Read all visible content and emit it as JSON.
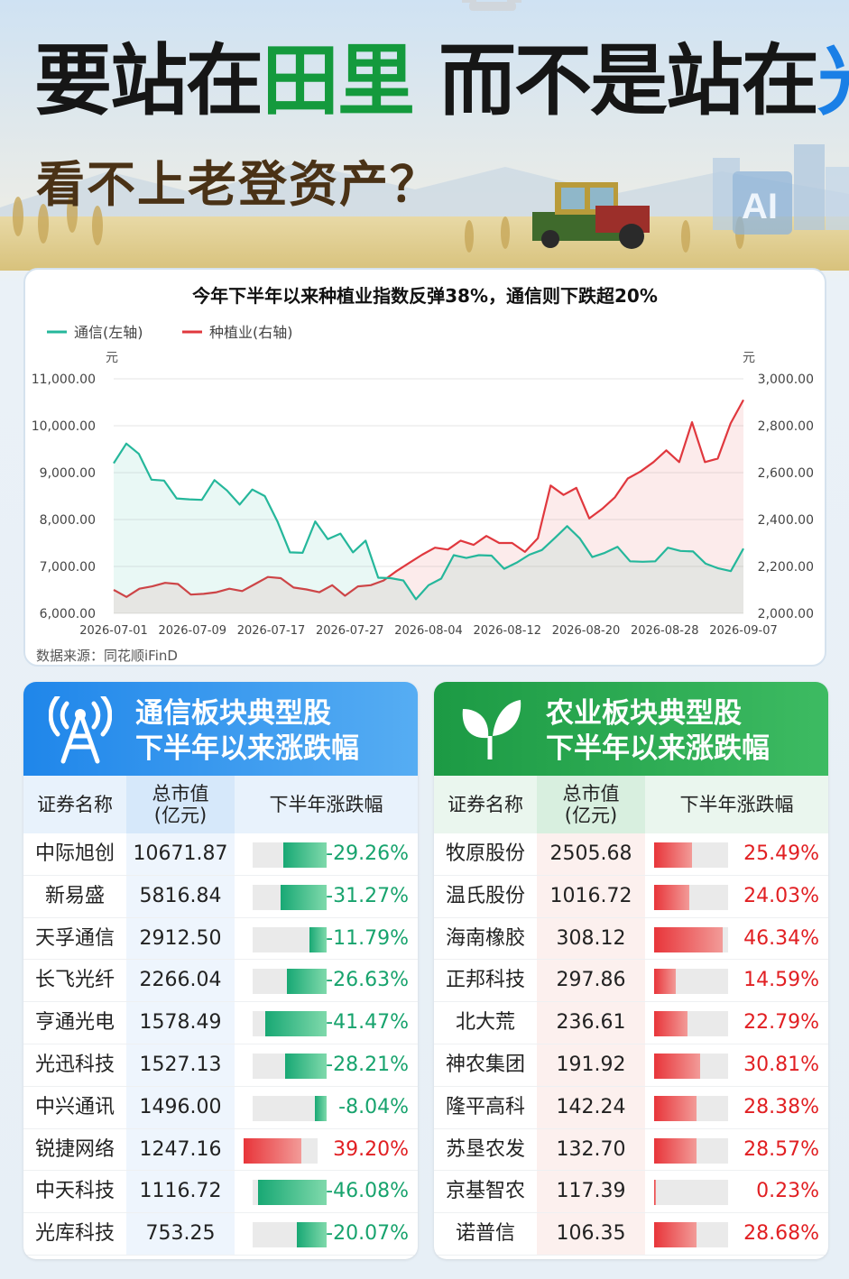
{
  "header": {
    "line1_a": "要站在",
    "line1_b": "田里",
    "line1_c": " 而不是站在",
    "line1_d": "光里",
    "line2": "看不上老登资产？",
    "ai_label": "AI"
  },
  "chart_data": {
    "type": "line",
    "title": "今年下半年以来种植业指数反弹38%，通信则下跌超20%",
    "source": "数据来源：同花顺iFinD",
    "left_unit": "元",
    "right_unit": "元",
    "left_axis": {
      "ticks": [
        "6,000.00",
        "7,000.00",
        "8,000.00",
        "9,000.00",
        "10,000.00",
        "11,000.00"
      ],
      "range": [
        6000,
        11000
      ]
    },
    "right_axis": {
      "ticks": [
        "2,000.00",
        "2,200.00",
        "2,400.00",
        "2,600.00",
        "2,800.00",
        "3,000.00"
      ],
      "range": [
        2000,
        3000
      ]
    },
    "x_ticks": [
      "2026-07-01",
      "2026-07-09",
      "2026-07-17",
      "2026-07-27",
      "2026-08-04",
      "2026-08-12",
      "2026-08-20",
      "2026-08-28",
      "2026-09-07"
    ],
    "series": [
      {
        "name": "种植业(右轴)",
        "axis": "right",
        "color": "#e0383e",
        "values": [
          2100,
          2070,
          2105,
          2115,
          2130,
          2125,
          2080,
          2083,
          2090,
          2105,
          2095,
          2125,
          2155,
          2150,
          2110,
          2102,
          2090,
          2120,
          2075,
          2115,
          2120,
          2140,
          2180,
          2215,
          2250,
          2280,
          2272,
          2310,
          2292,
          2330,
          2300,
          2300,
          2262,
          2320,
          2545,
          2505,
          2535,
          2405,
          2445,
          2495,
          2575,
          2605,
          2645,
          2695,
          2645,
          2815,
          2645,
          2660,
          2810
        ],
        "end_value": 2910
      },
      {
        "name": "通信(左轴)",
        "axis": "left",
        "color": "#25b79b",
        "values": [
          9200,
          9620,
          9400,
          8850,
          8830,
          8450,
          8430,
          8420,
          8840,
          8620,
          8320,
          8640,
          8500,
          7960,
          7300,
          7290,
          7960,
          7580,
          7700,
          7300,
          7550,
          6760,
          6750,
          6700,
          6300,
          6600,
          6740,
          7240,
          7180,
          7240,
          7230,
          6950,
          7080,
          7250,
          7350,
          7600,
          7860,
          7600,
          7200,
          7290,
          7420,
          7110,
          7100,
          7110,
          7400,
          7330,
          7320,
          7060,
          6960,
          6900,
          7380
        ]
      }
    ]
  },
  "telecom_table": {
    "title1": "通信板块典型股",
    "title2": "下半年以来涨跌幅",
    "col_name": "证券名称",
    "col_cap1": "总市值",
    "col_cap2": "(亿元)",
    "col_change": "下半年涨跌幅",
    "rows": [
      {
        "name": "中际旭创",
        "cap": "10671.87",
        "change": "-29.26%",
        "value": -29.26
      },
      {
        "name": "新易盛",
        "cap": "5816.84",
        "change": "-31.27%",
        "value": -31.27
      },
      {
        "name": "天孚通信",
        "cap": "2912.50",
        "change": "-11.79%",
        "value": -11.79
      },
      {
        "name": "长飞光纤",
        "cap": "2266.04",
        "change": "-26.63%",
        "value": -26.63
      },
      {
        "name": "亨通光电",
        "cap": "1578.49",
        "change": "-41.47%",
        "value": -41.47
      },
      {
        "name": "光迅科技",
        "cap": "1527.13",
        "change": "-28.21%",
        "value": -28.21
      },
      {
        "name": "中兴通讯",
        "cap": "1496.00",
        "change": "-8.04%",
        "value": -8.04
      },
      {
        "name": "锐捷网络",
        "cap": "1247.16",
        "change": "39.20%",
        "value": 39.2
      },
      {
        "name": "中天科技",
        "cap": "1116.72",
        "change": "-46.08%",
        "value": -46.08
      },
      {
        "name": "光库科技",
        "cap": "753.25",
        "change": "-20.07%",
        "value": -20.07
      }
    ]
  },
  "agri_table": {
    "title1": "农业板块典型股",
    "title2": "下半年以来涨跌幅",
    "col_name": "证券名称",
    "col_cap1": "总市值",
    "col_cap2": "(亿元)",
    "col_change": "下半年涨跌幅",
    "rows": [
      {
        "name": "牧原股份",
        "cap": "2505.68",
        "change": "25.49%",
        "value": 25.49
      },
      {
        "name": "温氏股份",
        "cap": "1016.72",
        "change": "24.03%",
        "value": 24.03
      },
      {
        "name": "海南橡胶",
        "cap": "308.12",
        "change": "46.34%",
        "value": 46.34
      },
      {
        "name": "正邦科技",
        "cap": "297.86",
        "change": "14.59%",
        "value": 14.59
      },
      {
        "name": "北大荒",
        "cap": "236.61",
        "change": "22.79%",
        "value": 22.79
      },
      {
        "name": "神农集团",
        "cap": "191.92",
        "change": "30.81%",
        "value": 30.81
      },
      {
        "name": "隆平高科",
        "cap": "142.24",
        "change": "28.38%",
        "value": 28.38
      },
      {
        "name": "苏垦农发",
        "cap": "132.70",
        "change": "28.57%",
        "value": 28.57
      },
      {
        "name": "京基智农",
        "cap": "117.39",
        "change": "0.23%",
        "value": 0.23
      },
      {
        "name": "诺普信",
        "cap": "106.35",
        "change": "28.68%",
        "value": 28.68
      }
    ]
  },
  "colors": {
    "neg_bar": "#18a874",
    "pos_bar": "#e8353a",
    "neg_text": "#17a36d",
    "pos_text": "#e11f22"
  }
}
